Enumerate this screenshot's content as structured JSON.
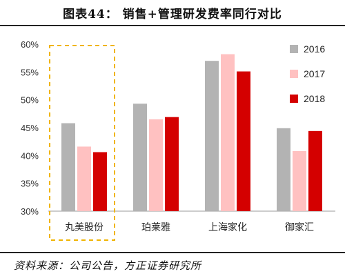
{
  "figure_title": "图表44：  销售+管理研发费率同行对比",
  "source_note": "资料来源：公司公告，方正证券研究所",
  "chart_data": {
    "type": "bar",
    "categories": [
      "丸美股份",
      "珀莱雅",
      "上海家化",
      "御家汇"
    ],
    "series": [
      {
        "name": "2016",
        "color": "#b3b3b3",
        "values": [
          45.8,
          49.3,
          57.0,
          44.9
        ]
      },
      {
        "name": "2017",
        "color": "#ffc1c1",
        "values": [
          41.6,
          46.5,
          58.2,
          40.8
        ]
      },
      {
        "name": "2018",
        "color": "#d40000",
        "values": [
          40.6,
          46.9,
          55.1,
          44.4
        ]
      }
    ],
    "ylim": [
      30,
      60
    ],
    "yticks": [
      "30%",
      "35%",
      "40%",
      "45%",
      "50%",
      "55%",
      "60%"
    ],
    "ytick_values": [
      30,
      35,
      40,
      45,
      50,
      55,
      60
    ],
    "legend_position": "right",
    "highlight_category": "丸美股份",
    "highlight_color": "#f0b400",
    "grid": false
  }
}
